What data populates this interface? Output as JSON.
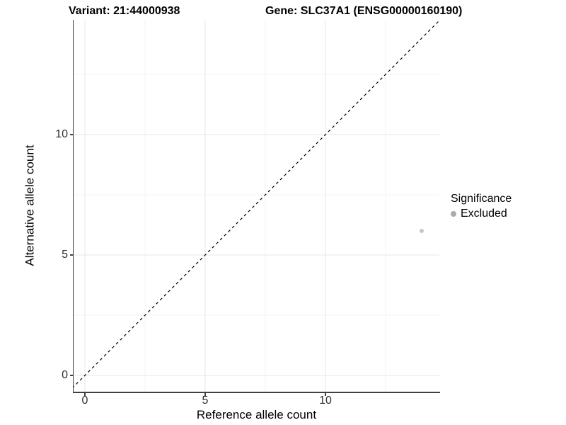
{
  "titles": {
    "variant": "Variant: 21:44000938",
    "gene": "Gene: SLC37A1 (ENSG00000160190)"
  },
  "chart_data": {
    "type": "scatter",
    "title_left": "Variant: 21:44000938",
    "title_right": "Gene: SLC37A1 (ENSG00000160190)",
    "xlabel": "Reference allele count",
    "ylabel": "Alternative allele count",
    "x_ticks": [
      "0",
      "5",
      "10"
    ],
    "y_ticks": [
      "0",
      "5",
      "10"
    ],
    "x_tick_values": [
      0,
      5,
      10
    ],
    "y_tick_values": [
      0,
      5,
      10
    ],
    "xlim": [
      -0.5,
      14.75
    ],
    "ylim": [
      -0.7,
      14.75
    ],
    "grid": "major and minor, light gray, on white background",
    "minor_grid_values": [
      2.5,
      7.5,
      12.5
    ],
    "reference_line": {
      "type": "identity y=x",
      "style": "dashed",
      "color": "#000000"
    },
    "series": [
      {
        "name": "Excluded",
        "point_color": "#c6c6c6",
        "points": [
          {
            "x": 14,
            "y": 6
          }
        ]
      }
    ],
    "legend": {
      "title": "Significance",
      "position": "right",
      "items": [
        {
          "label": "Excluded",
          "key_color": "#ababab"
        }
      ]
    }
  },
  "colors": {
    "background": "#ffffff",
    "axis_line": "#404040",
    "major_grid": "#e7e7e7",
    "minor_grid": "#f3f3f3",
    "tick_text": "#303030",
    "point": "#c6c6c6",
    "legend_key": "#ababab"
  }
}
